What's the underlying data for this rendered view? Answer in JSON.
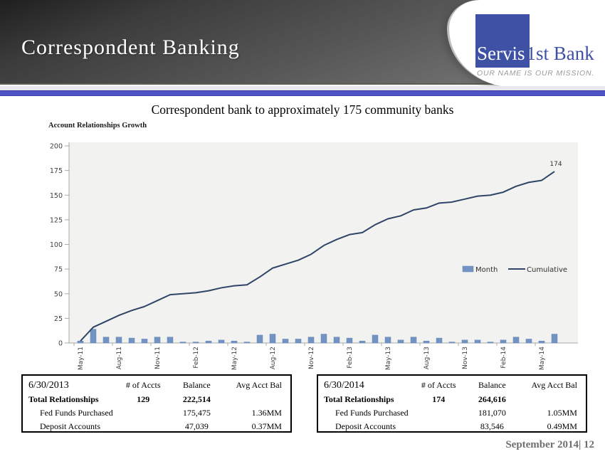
{
  "header": {
    "title": "Correspondent Banking"
  },
  "logo": {
    "name_left": "Servis",
    "name_right": "1st Bank",
    "tagline": "OUR NAME IS OUR MISSION.",
    "brand_blue": "#3f51a4"
  },
  "subtitle": "Correspondent bank to approximately 175 community banks",
  "chart_data": {
    "type": "bar",
    "combo": "bar+line",
    "title": "Account Relationships Growth",
    "x": [
      "May-11",
      "Jun-11",
      "Jul-11",
      "Aug-11",
      "Sep-11",
      "Oct-11",
      "Nov-11",
      "Dec-11",
      "Jan-12",
      "Feb-12",
      "Mar-12",
      "Apr-12",
      "May-12",
      "Jun-12",
      "Jul-12",
      "Aug-12",
      "Sep-12",
      "Oct-12",
      "Nov-12",
      "Dec-12",
      "Jan-13",
      "Feb-13",
      "Mar-13",
      "Apr-13",
      "May-13",
      "Jun-13",
      "Jul-13",
      "Aug-13",
      "Sep-13",
      "Oct-13",
      "Nov-13",
      "Dec-13",
      "Jan-14",
      "Feb-14",
      "Mar-14",
      "Apr-14",
      "May-14",
      "Jun-14"
    ],
    "x_label_every": 3,
    "series": [
      {
        "name": "Month",
        "type": "bar",
        "color": "#7394c3",
        "border": "#6285b5",
        "values": [
          2,
          14,
          6,
          6,
          5,
          4,
          6,
          6,
          1,
          1,
          2,
          3,
          2,
          1,
          8,
          9,
          4,
          4,
          6,
          9,
          6,
          5,
          2,
          8,
          6,
          3,
          6,
          2,
          5,
          1,
          3,
          3,
          1,
          3,
          6,
          4,
          2,
          9
        ]
      },
      {
        "name": "Cumulative",
        "type": "line",
        "color": "#2e4568",
        "values": [
          2,
          16,
          22,
          28,
          33,
          37,
          43,
          49,
          50,
          51,
          53,
          56,
          58,
          59,
          67,
          76,
          80,
          84,
          90,
          99,
          105,
          110,
          112,
          120,
          126,
          129,
          135,
          137,
          142,
          143,
          146,
          149,
          150,
          153,
          159,
          163,
          165,
          174
        ]
      }
    ],
    "ylim": [
      0,
      200
    ],
    "ytick_step": 25,
    "end_label": "174",
    "legend_position": "right-middle",
    "grid": false,
    "plot_bg": "#f2f2f0",
    "axis_color": "#a8a8a8",
    "text_color": "#404040"
  },
  "tables": [
    {
      "date": "6/30/2013",
      "columns": [
        "# of Accts",
        "Balance",
        "Avg Acct Bal"
      ],
      "rows": [
        {
          "label": "Total Relationships",
          "accts": "129",
          "balance": "222,514",
          "avg": ""
        },
        {
          "label": "Fed Funds Purchased",
          "accts": "",
          "balance": "175,475",
          "avg": "1.36MM"
        },
        {
          "label": "Deposit Accounts",
          "accts": "",
          "balance": "47,039",
          "avg": "0.37MM"
        }
      ]
    },
    {
      "date": "6/30/2014",
      "columns": [
        "# of Accts",
        "Balance",
        "Avg Acct Bal"
      ],
      "rows": [
        {
          "label": "Total Relationships",
          "accts": "174",
          "balance": "264,616",
          "avg": ""
        },
        {
          "label": "Fed Funds Purchased",
          "accts": "",
          "balance": "181,070",
          "avg": "1.05MM"
        },
        {
          "label": "Deposit Accounts",
          "accts": "",
          "balance": "83,546",
          "avg": "0.49MM"
        }
      ]
    }
  ],
  "footer": {
    "text": "September 2014| 12"
  }
}
